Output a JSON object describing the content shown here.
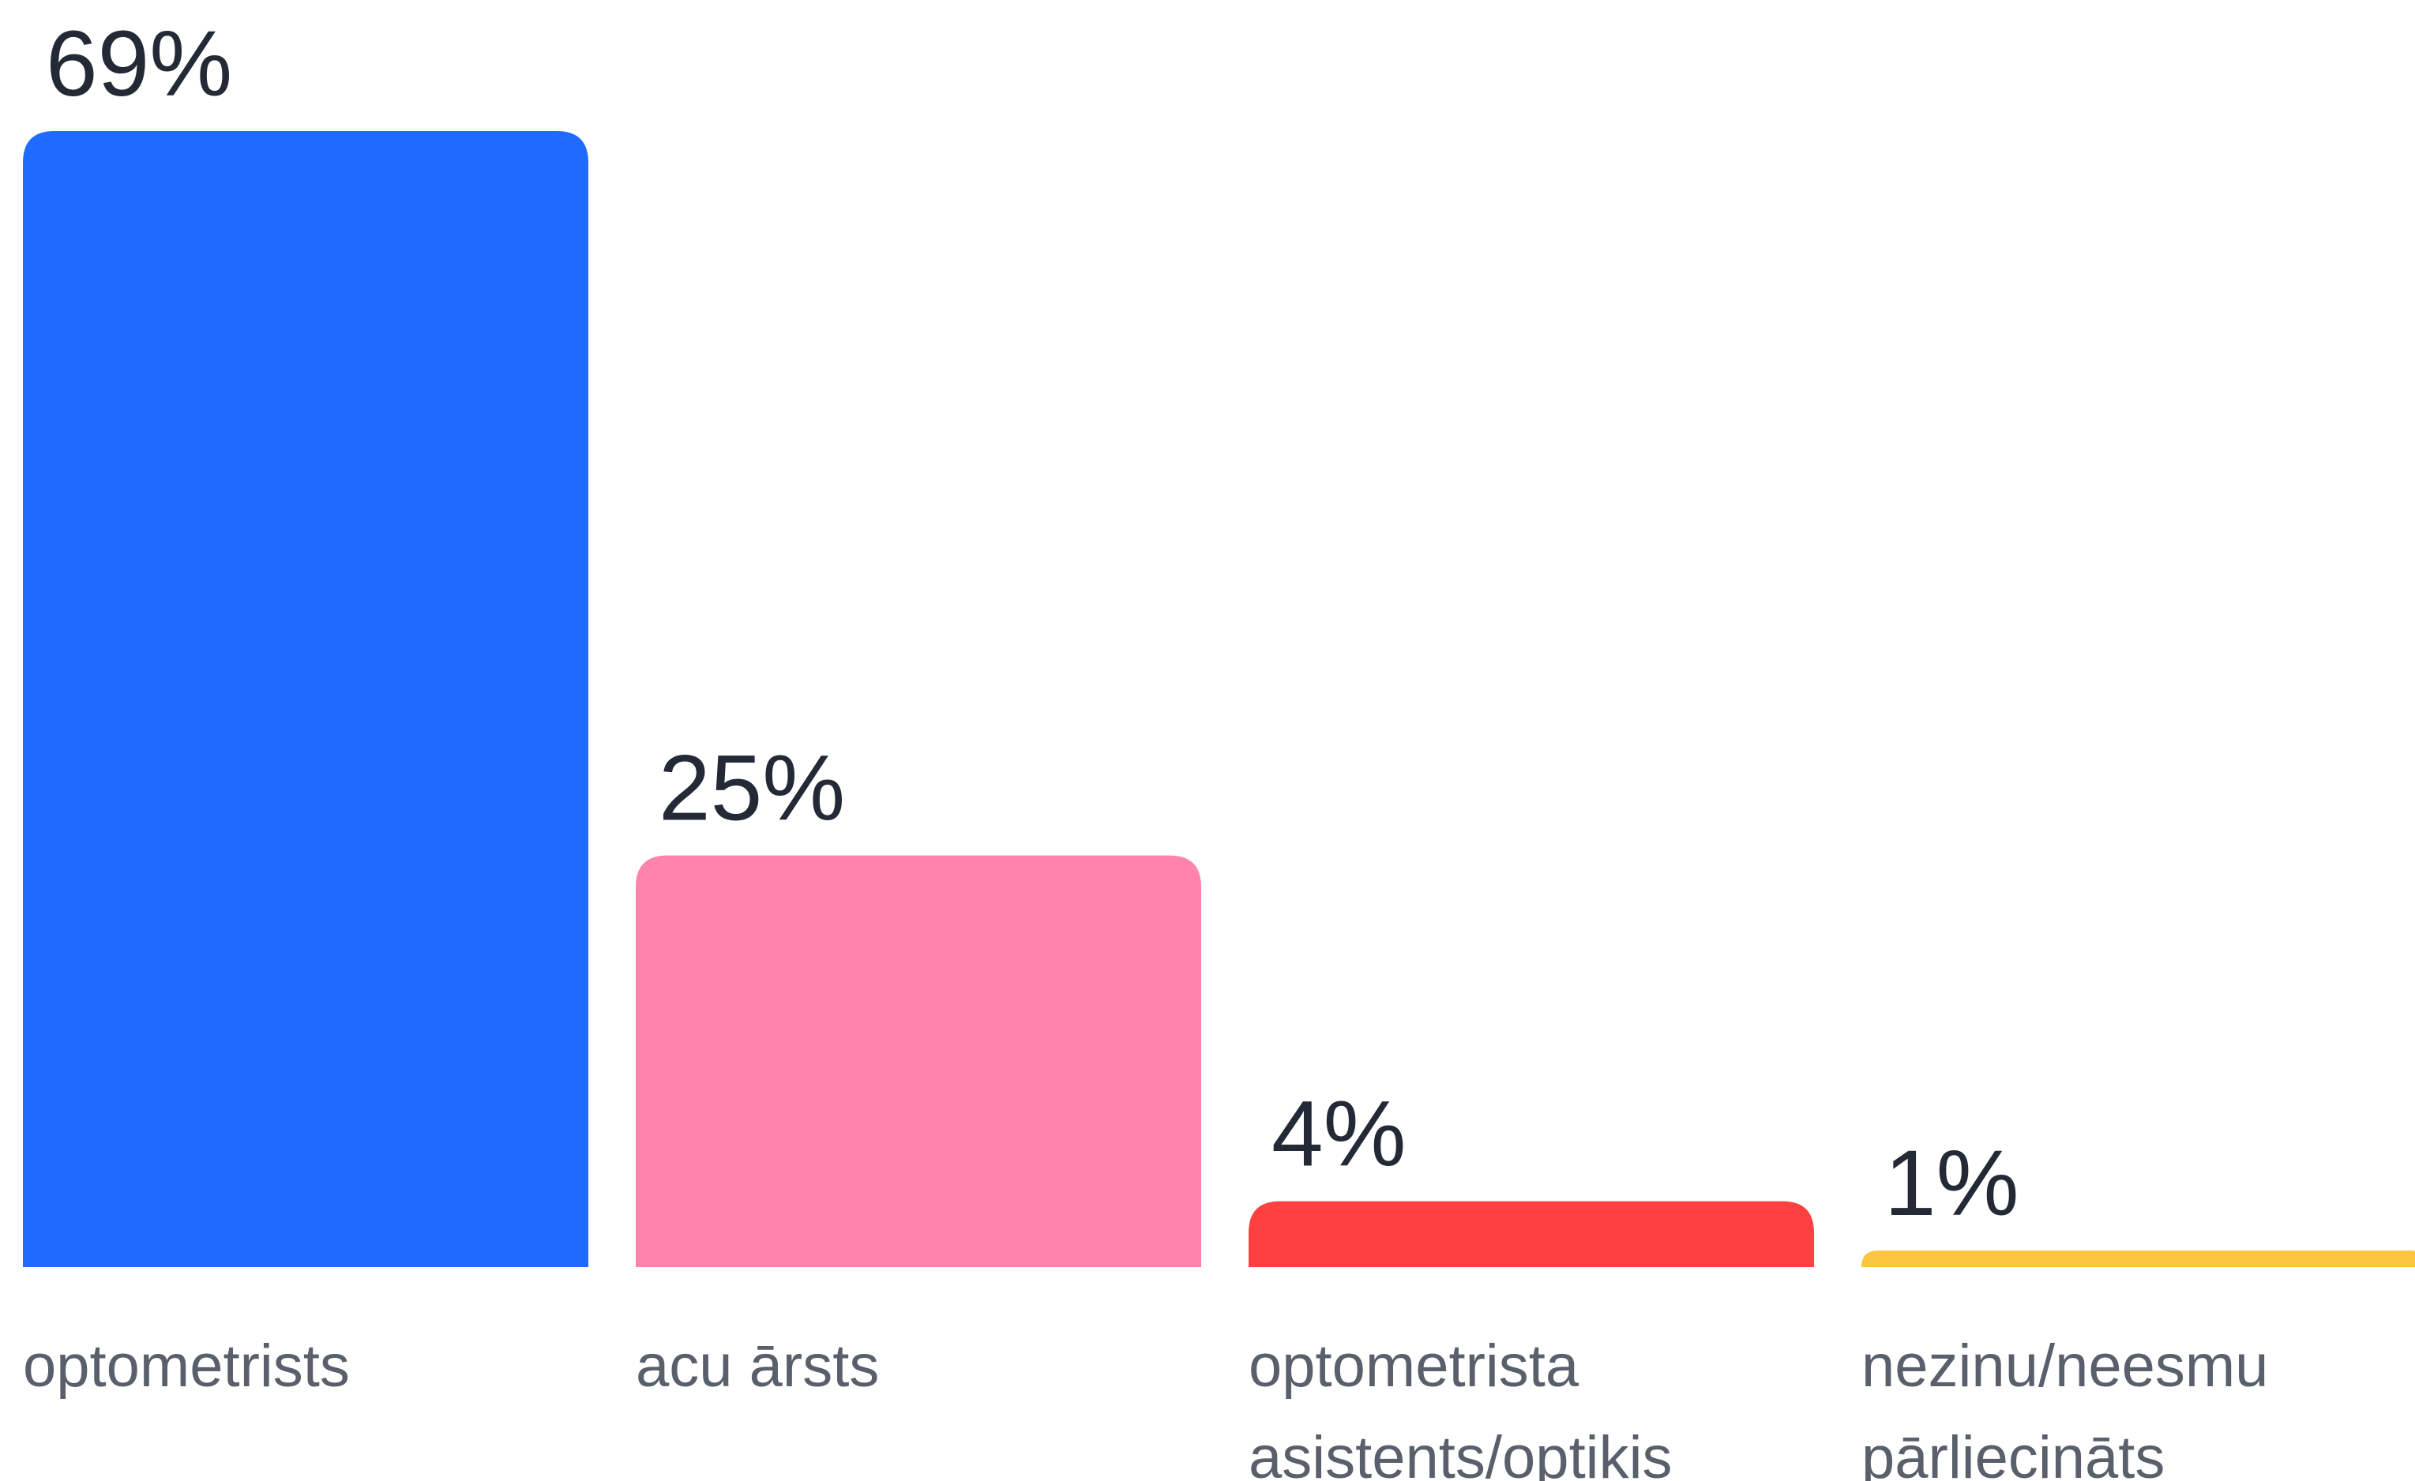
{
  "chart_data": {
    "type": "bar",
    "categories": [
      "optometrists",
      "acu ārsts",
      "optometrista asistents/optiķis",
      "nezinu/neesmu pārliecināts"
    ],
    "series": [
      {
        "values": [
          69,
          25,
          4,
          1
        ],
        "colors": [
          "#1f6bff",
          "#ff84ad",
          "#ff4040",
          "#fcc53d"
        ]
      }
    ],
    "value_labels": [
      "69%",
      "25%",
      "4%",
      "1%"
    ]
  }
}
